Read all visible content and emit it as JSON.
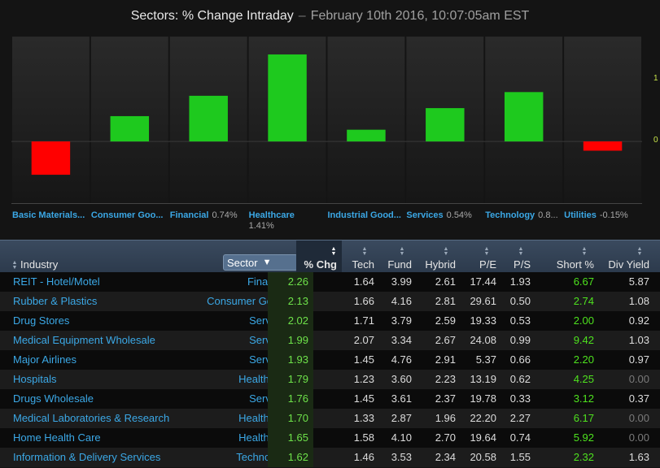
{
  "title": {
    "main": "Sectors: % Change Intraday",
    "sep": "–",
    "date": "February 10th 2016, 10:07:05am EST"
  },
  "chart_data": {
    "type": "bar",
    "categories": [
      "Basic Materials...",
      "Consumer Goo...",
      "Financial",
      "Healthcare",
      "Industrial Good...",
      "Services",
      "Technology",
      "Utilities"
    ],
    "value_labels": [
      "",
      "",
      "0.74%",
      "1.41%",
      "",
      "0.54%",
      "0.8...",
      "-0.15%"
    ],
    "values": [
      -0.54,
      0.41,
      0.74,
      1.41,
      0.19,
      0.54,
      0.8,
      -0.15
    ],
    "ylim": [
      -1.0,
      1.7
    ],
    "y_ticks": [
      "1",
      "0"
    ],
    "colors": {
      "positive": "#1ec91e",
      "negative": "#ff0000"
    },
    "grid": false
  },
  "table": {
    "columns": {
      "industry": "Industry",
      "sector": "Sector",
      "chg": "% Chg",
      "tech": "Tech",
      "fund": "Fund",
      "hybrid": "Hybrid",
      "pe": "P/E",
      "ps": "P/S",
      "short": "Short %",
      "div": "Div Yield"
    },
    "rows": [
      {
        "industry": "REIT - Hotel/Motel",
        "sector": "Financial",
        "chg": "2.26",
        "tech": "1.64",
        "fund": "3.99",
        "hybrid": "2.61",
        "pe": "17.44",
        "ps": "1.93",
        "short": "6.67",
        "div": "5.87"
      },
      {
        "industry": "Rubber & Plastics",
        "sector": "Consumer Goods",
        "chg": "2.13",
        "tech": "1.66",
        "fund": "4.16",
        "hybrid": "2.81",
        "pe": "29.61",
        "ps": "0.50",
        "short": "2.74",
        "div": "1.08"
      },
      {
        "industry": "Drug Stores",
        "sector": "Services",
        "chg": "2.02",
        "tech": "1.71",
        "fund": "3.79",
        "hybrid": "2.59",
        "pe": "19.33",
        "ps": "0.53",
        "short": "2.00",
        "div": "0.92"
      },
      {
        "industry": "Medical Equipment Wholesale",
        "sector": "Services",
        "chg": "1.99",
        "tech": "2.07",
        "fund": "3.34",
        "hybrid": "2.67",
        "pe": "24.08",
        "ps": "0.99",
        "short": "9.42",
        "div": "1.03"
      },
      {
        "industry": "Major Airlines",
        "sector": "Services",
        "chg": "1.93",
        "tech": "1.45",
        "fund": "4.76",
        "hybrid": "2.91",
        "pe": "5.37",
        "ps": "0.66",
        "short": "2.20",
        "div": "0.97"
      },
      {
        "industry": "Hospitals",
        "sector": "Healthcare",
        "chg": "1.79",
        "tech": "1.23",
        "fund": "3.60",
        "hybrid": "2.23",
        "pe": "13.19",
        "ps": "0.62",
        "short": "4.25",
        "div": "0.00"
      },
      {
        "industry": "Drugs Wholesale",
        "sector": "Services",
        "chg": "1.76",
        "tech": "1.45",
        "fund": "3.61",
        "hybrid": "2.37",
        "pe": "19.78",
        "ps": "0.33",
        "short": "3.12",
        "div": "0.37"
      },
      {
        "industry": "Medical Laboratories & Research",
        "sector": "Healthcare",
        "chg": "1.70",
        "tech": "1.33",
        "fund": "2.87",
        "hybrid": "1.96",
        "pe": "22.20",
        "ps": "2.27",
        "short": "6.17",
        "div": "0.00"
      },
      {
        "industry": "Home Health Care",
        "sector": "Healthcare",
        "chg": "1.65",
        "tech": "1.58",
        "fund": "4.10",
        "hybrid": "2.70",
        "pe": "19.64",
        "ps": "0.74",
        "short": "5.92",
        "div": "0.00"
      },
      {
        "industry": "Information & Delivery Services",
        "sector": "Technology",
        "chg": "1.62",
        "tech": "1.46",
        "fund": "3.53",
        "hybrid": "2.34",
        "pe": "20.58",
        "ps": "1.55",
        "short": "2.32",
        "div": "1.63"
      }
    ]
  }
}
